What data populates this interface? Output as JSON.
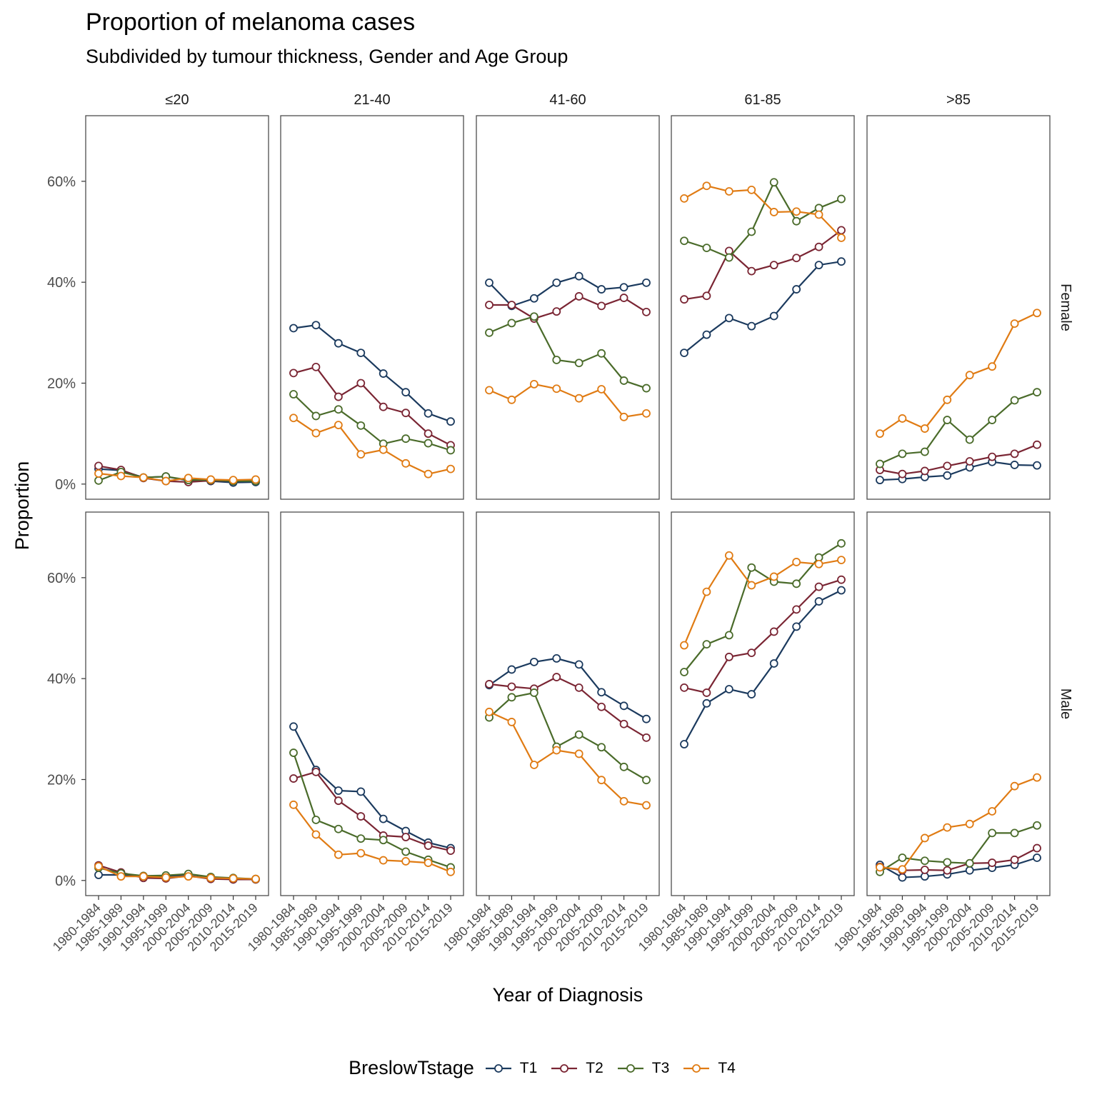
{
  "title": "Proportion of melanoma cases",
  "subtitle": "Subdivided by tumour thickness, Gender and Age Group",
  "chart_data": {
    "type": "line",
    "title": "Proportion of melanoma cases",
    "subtitle": "Subdivided by tumour thickness, Gender and Age Group",
    "xlabel": "Year of Diagnosis",
    "ylabel": "Proportion",
    "ylim": [
      -0.03,
      0.73
    ],
    "yticks": [
      0,
      0.2,
      0.4,
      0.6
    ],
    "yticklabels": [
      "0%",
      "20%",
      "40%",
      "60%"
    ],
    "grid": false,
    "legend": {
      "title": "BreslowTstage",
      "placement": "bottom"
    },
    "x": [
      "1980-1984",
      "1985-1989",
      "1990-1994",
      "1995-1999",
      "2000-2004",
      "2005-2009",
      "2010-2014",
      "2015-2019"
    ],
    "facet_cols": [
      "≤20",
      "21-40",
      "41-60",
      "61-85",
      ">85"
    ],
    "facet_rows": [
      "Female",
      "Male"
    ],
    "series_names": [
      "T1",
      "T2",
      "T3",
      "T4"
    ],
    "colors": {
      "T1": "#1b3a5e",
      "T2": "#7a2533",
      "T3": "#4a6b2a",
      "T4": "#e07b13"
    },
    "panels": [
      {
        "row": "Female",
        "col": "≤20",
        "series": [
          {
            "name": "T1",
            "values": [
              0.03,
              0.027,
              0.013,
              0.015,
              0.007,
              0.006,
              0.003,
              0.004
            ]
          },
          {
            "name": "T2",
            "values": [
              0.036,
              0.028,
              0.012,
              0.006,
              0.004,
              0.007,
              0.006,
              0.007
            ]
          },
          {
            "name": "T3",
            "values": [
              0.007,
              0.024,
              0.013,
              0.015,
              0.008,
              0.008,
              0.006,
              0.006
            ]
          },
          {
            "name": "T4",
            "values": [
              0.021,
              0.016,
              0.013,
              0.006,
              0.012,
              0.009,
              0.008,
              0.009
            ]
          }
        ]
      },
      {
        "row": "Female",
        "col": "21-40",
        "series": [
          {
            "name": "T1",
            "values": [
              0.309,
              0.315,
              0.279,
              0.26,
              0.219,
              0.182,
              0.14,
              0.124
            ]
          },
          {
            "name": "T2",
            "values": [
              0.22,
              0.232,
              0.173,
              0.2,
              0.153,
              0.141,
              0.1,
              0.077
            ]
          },
          {
            "name": "T3",
            "values": [
              0.178,
              0.135,
              0.148,
              0.116,
              0.08,
              0.09,
              0.081,
              0.067
            ]
          },
          {
            "name": "T4",
            "values": [
              0.131,
              0.101,
              0.117,
              0.059,
              0.068,
              0.041,
              0.02,
              0.03
            ]
          }
        ]
      },
      {
        "row": "Female",
        "col": "41-60",
        "series": [
          {
            "name": "T1",
            "values": [
              0.399,
              0.353,
              0.368,
              0.399,
              0.412,
              0.386,
              0.39,
              0.399
            ]
          },
          {
            "name": "T2",
            "values": [
              0.355,
              0.355,
              0.328,
              0.342,
              0.372,
              0.353,
              0.369,
              0.341
            ]
          },
          {
            "name": "T3",
            "values": [
              0.3,
              0.319,
              0.332,
              0.246,
              0.24,
              0.259,
              0.205,
              0.19
            ]
          },
          {
            "name": "T4",
            "values": [
              0.186,
              0.167,
              0.198,
              0.189,
              0.17,
              0.188,
              0.133,
              0.14
            ]
          }
        ]
      },
      {
        "row": "Female",
        "col": "61-85",
        "series": [
          {
            "name": "T1",
            "values": [
              0.26,
              0.296,
              0.329,
              0.313,
              0.333,
              0.386,
              0.434,
              0.441
            ]
          },
          {
            "name": "T2",
            "values": [
              0.366,
              0.373,
              0.462,
              0.422,
              0.434,
              0.448,
              0.47,
              0.503
            ]
          },
          {
            "name": "T3",
            "values": [
              0.482,
              0.468,
              0.449,
              0.5,
              0.598,
              0.521,
              0.547,
              0.565
            ]
          },
          {
            "name": "T4",
            "values": [
              0.566,
              0.591,
              0.58,
              0.583,
              0.539,
              0.54,
              0.534,
              0.488
            ]
          }
        ]
      },
      {
        "row": "Female",
        "col": ">85",
        "series": [
          {
            "name": "T1",
            "values": [
              0.008,
              0.01,
              0.014,
              0.017,
              0.033,
              0.044,
              0.038,
              0.037
            ]
          },
          {
            "name": "T2",
            "values": [
              0.028,
              0.02,
              0.026,
              0.036,
              0.045,
              0.054,
              0.06,
              0.078
            ]
          },
          {
            "name": "T3",
            "values": [
              0.04,
              0.06,
              0.064,
              0.127,
              0.088,
              0.127,
              0.166,
              0.182
            ]
          },
          {
            "name": "T4",
            "values": [
              0.1,
              0.13,
              0.11,
              0.167,
              0.216,
              0.233,
              0.318,
              0.339
            ]
          }
        ]
      },
      {
        "row": "Male",
        "col": "≤20",
        "series": [
          {
            "name": "T1",
            "values": [
              0.011,
              0.011,
              0.007,
              0.009,
              0.009,
              0.005,
              0.002,
              0.002
            ]
          },
          {
            "name": "T2",
            "values": [
              0.03,
              0.016,
              0.005,
              0.004,
              0.009,
              0.003,
              0.002,
              0.002
            ]
          },
          {
            "name": "T3",
            "values": [
              0.025,
              0.014,
              0.009,
              0.01,
              0.013,
              0.007,
              0.005,
              0.003
            ]
          },
          {
            "name": "T4",
            "values": [
              0.028,
              0.008,
              0.008,
              0.006,
              0.008,
              0.005,
              0.004,
              0.003
            ]
          }
        ]
      },
      {
        "row": "Male",
        "col": "21-40",
        "series": [
          {
            "name": "T1",
            "values": [
              0.305,
              0.219,
              0.178,
              0.176,
              0.122,
              0.098,
              0.075,
              0.064
            ]
          },
          {
            "name": "T2",
            "values": [
              0.202,
              0.215,
              0.158,
              0.127,
              0.089,
              0.086,
              0.069,
              0.059
            ]
          },
          {
            "name": "T3",
            "values": [
              0.253,
              0.12,
              0.102,
              0.083,
              0.08,
              0.057,
              0.041,
              0.026
            ]
          },
          {
            "name": "T4",
            "values": [
              0.15,
              0.091,
              0.051,
              0.054,
              0.04,
              0.038,
              0.035,
              0.017
            ]
          }
        ]
      },
      {
        "row": "Male",
        "col": "41-60",
        "series": [
          {
            "name": "T1",
            "values": [
              0.387,
              0.418,
              0.433,
              0.44,
              0.428,
              0.373,
              0.346,
              0.32
            ]
          },
          {
            "name": "T2",
            "values": [
              0.389,
              0.384,
              0.38,
              0.403,
              0.382,
              0.344,
              0.31,
              0.283
            ]
          },
          {
            "name": "T3",
            "values": [
              0.323,
              0.363,
              0.372,
              0.265,
              0.289,
              0.264,
              0.225,
              0.199
            ]
          },
          {
            "name": "T4",
            "values": [
              0.334,
              0.314,
              0.229,
              0.258,
              0.251,
              0.199,
              0.157,
              0.149
            ]
          }
        ]
      },
      {
        "row": "Male",
        "col": "61-85",
        "series": [
          {
            "name": "T1",
            "values": [
              0.27,
              0.351,
              0.379,
              0.369,
              0.43,
              0.503,
              0.553,
              0.575
            ]
          },
          {
            "name": "T2",
            "values": [
              0.382,
              0.372,
              0.443,
              0.451,
              0.493,
              0.537,
              0.582,
              0.596
            ]
          },
          {
            "name": "T3",
            "values": [
              0.413,
              0.468,
              0.486,
              0.62,
              0.592,
              0.588,
              0.64,
              0.668
            ]
          },
          {
            "name": "T4",
            "values": [
              0.466,
              0.572,
              0.644,
              0.585,
              0.602,
              0.631,
              0.627,
              0.635
            ]
          }
        ]
      },
      {
        "row": "Male",
        "col": ">85",
        "series": [
          {
            "name": "T1",
            "values": [
              0.031,
              0.006,
              0.008,
              0.012,
              0.02,
              0.025,
              0.031,
              0.045
            ]
          },
          {
            "name": "T2",
            "values": [
              0.027,
              0.02,
              0.021,
              0.02,
              0.034,
              0.035,
              0.041,
              0.064
            ]
          },
          {
            "name": "T3",
            "values": [
              0.017,
              0.045,
              0.039,
              0.036,
              0.034,
              0.094,
              0.094,
              0.109
            ]
          },
          {
            "name": "T4",
            "values": [
              0.026,
              0.022,
              0.084,
              0.105,
              0.112,
              0.137,
              0.187,
              0.204
            ]
          }
        ]
      }
    ]
  }
}
